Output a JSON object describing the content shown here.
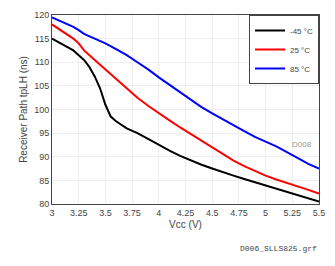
{
  "chart_data": {
    "type": "line",
    "xlabel": "Vcc (V)",
    "ylabel": "Receiver Path tpLH (ns)",
    "xlim": [
      3,
      5.5
    ],
    "ylim": [
      80,
      120
    ],
    "xticks": [
      3,
      3.25,
      3.5,
      3.75,
      4,
      4.25,
      4.5,
      4.75,
      5,
      5.25,
      5.5
    ],
    "yticks": [
      80,
      85,
      90,
      95,
      100,
      105,
      110,
      115,
      120
    ],
    "grid": true,
    "legend": "upper right",
    "series": [
      {
        "name": "-45 °C",
        "color": "black",
        "x": [
          3.0,
          3.1,
          3.2,
          3.25,
          3.3,
          3.35,
          3.4,
          3.45,
          3.5,
          3.55,
          3.6,
          3.7,
          3.8,
          3.9,
          4.0,
          4.1,
          4.2,
          4.3,
          4.4,
          4.5,
          4.6,
          4.7,
          4.8,
          4.9,
          5.0,
          5.1,
          5.2,
          5.3,
          5.4,
          5.5
        ],
        "values": [
          115.0,
          113.8,
          112.5,
          111.5,
          110.5,
          109.0,
          107.0,
          104.5,
          101.0,
          98.5,
          97.5,
          96.0,
          95.0,
          93.8,
          92.5,
          91.3,
          90.2,
          89.2,
          88.3,
          87.5,
          86.7,
          86.0,
          85.3,
          84.6,
          84.0,
          83.3,
          82.6,
          81.9,
          81.2,
          80.5
        ]
      },
      {
        "name": "25 °C",
        "color": "red",
        "x": [
          3.0,
          3.1,
          3.2,
          3.25,
          3.3,
          3.4,
          3.5,
          3.6,
          3.7,
          3.8,
          3.9,
          4.0,
          4.1,
          4.2,
          4.3,
          4.4,
          4.5,
          4.6,
          4.7,
          4.8,
          4.9,
          5.0,
          5.1,
          5.2,
          5.3,
          5.4,
          5.5
        ],
        "values": [
          118.0,
          116.5,
          115.0,
          114.0,
          112.5,
          110.5,
          108.5,
          106.5,
          104.5,
          102.5,
          100.8,
          99.2,
          97.7,
          96.2,
          94.8,
          93.4,
          92.0,
          90.6,
          89.2,
          88.0,
          87.0,
          86.0,
          85.2,
          84.5,
          83.8,
          83.0,
          82.2
        ]
      },
      {
        "name": "85 °C",
        "color": "blue",
        "x": [
          3.0,
          3.1,
          3.2,
          3.25,
          3.3,
          3.4,
          3.5,
          3.6,
          3.7,
          3.8,
          3.9,
          4.0,
          4.1,
          4.2,
          4.3,
          4.4,
          4.5,
          4.6,
          4.7,
          4.8,
          4.9,
          5.0,
          5.1,
          5.2,
          5.3,
          5.4,
          5.5
        ],
        "values": [
          119.5,
          118.5,
          117.5,
          116.8,
          116.0,
          115.0,
          114.0,
          112.8,
          111.5,
          110.0,
          108.5,
          106.8,
          105.2,
          103.6,
          102.0,
          100.5,
          99.2,
          97.9,
          96.6,
          95.4,
          94.2,
          93.2,
          92.2,
          91.0,
          89.8,
          88.5,
          87.5
        ]
      }
    ],
    "annotations": [
      {
        "text": "D008"
      },
      {
        "text": "D006_SLLS825.grf"
      }
    ]
  }
}
